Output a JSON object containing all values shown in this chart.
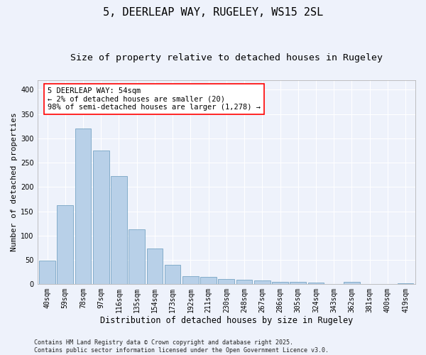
{
  "title": "5, DEERLEAP WAY, RUGELEY, WS15 2SL",
  "subtitle": "Size of property relative to detached houses in Rugeley",
  "xlabel": "Distribution of detached houses by size in Rugeley",
  "ylabel": "Number of detached properties",
  "categories": [
    "40sqm",
    "59sqm",
    "78sqm",
    "97sqm",
    "116sqm",
    "135sqm",
    "154sqm",
    "173sqm",
    "192sqm",
    "211sqm",
    "230sqm",
    "248sqm",
    "267sqm",
    "286sqm",
    "305sqm",
    "324sqm",
    "343sqm",
    "362sqm",
    "381sqm",
    "400sqm",
    "419sqm"
  ],
  "values": [
    49,
    163,
    321,
    275,
    222,
    113,
    74,
    40,
    17,
    15,
    10,
    9,
    7,
    5,
    4,
    3,
    0,
    5,
    1,
    0,
    2
  ],
  "bar_color": "#b8d0e8",
  "bar_edge_color": "#6699bb",
  "annotation_text": "5 DEERLEAP WAY: 54sqm\n← 2% of detached houses are smaller (20)\n98% of semi-detached houses are larger (1,278) →",
  "annotation_box_color": "white",
  "annotation_box_edge": "red",
  "ylim": [
    0,
    420
  ],
  "yticks": [
    0,
    50,
    100,
    150,
    200,
    250,
    300,
    350,
    400
  ],
  "background_color": "#eef2fb",
  "plot_background": "#eef2fb",
  "grid_color": "white",
  "footer": "Contains HM Land Registry data © Crown copyright and database right 2025.\nContains public sector information licensed under the Open Government Licence v3.0.",
  "title_fontsize": 11,
  "subtitle_fontsize": 9.5,
  "xlabel_fontsize": 8.5,
  "ylabel_fontsize": 8,
  "tick_fontsize": 7,
  "footer_fontsize": 6,
  "annotation_fontsize": 7.5
}
